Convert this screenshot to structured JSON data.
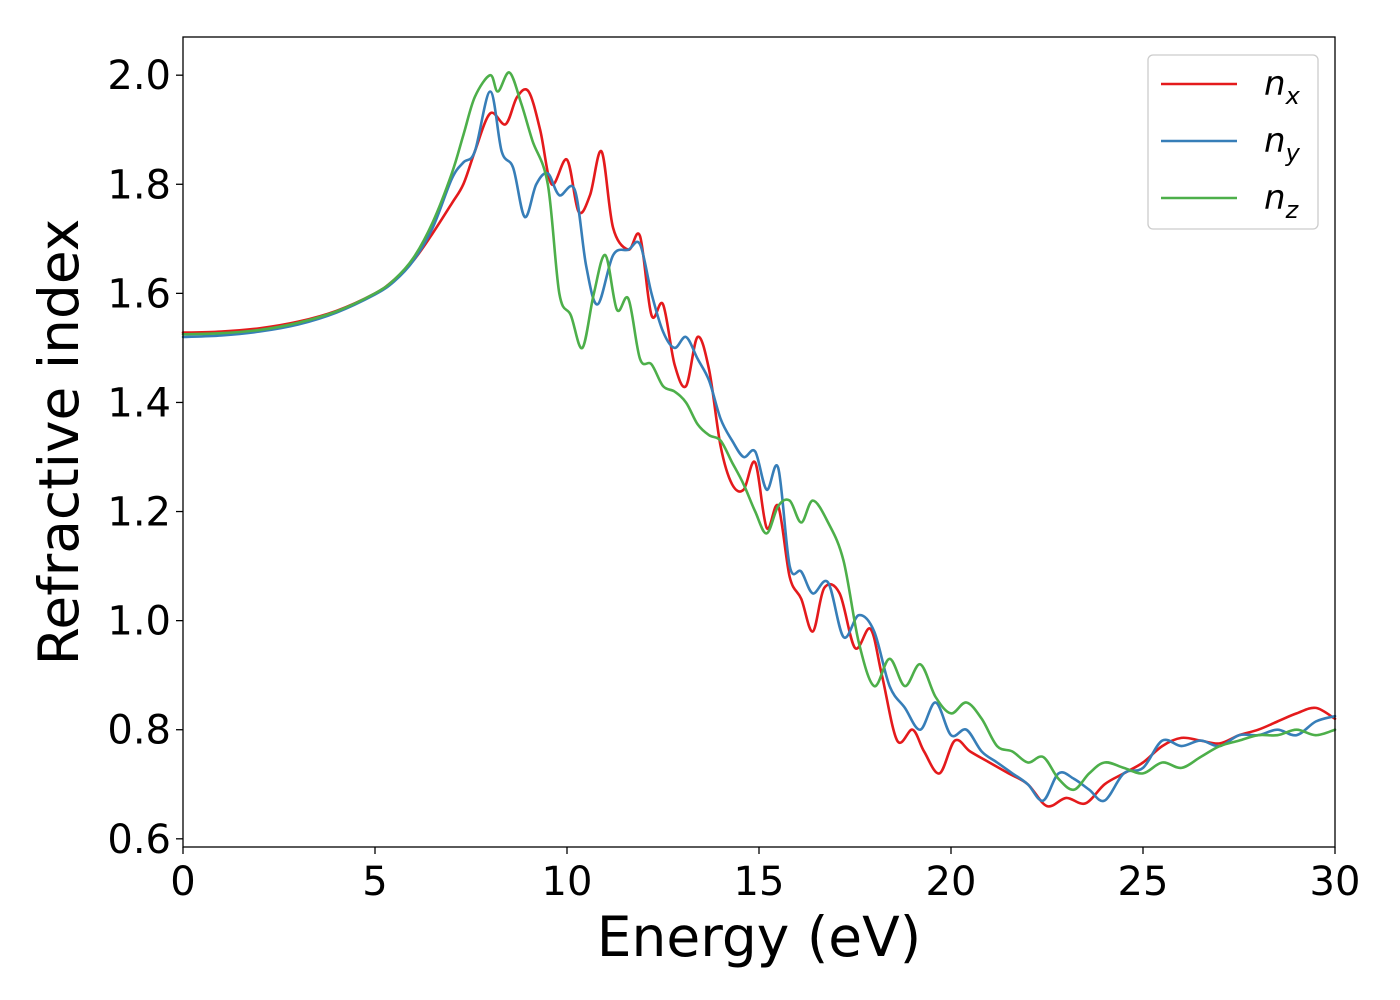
{
  "chart_data": {
    "type": "line",
    "title": "",
    "xlabel": "Energy (eV)",
    "ylabel": "Refractive index",
    "xlim": [
      0,
      30
    ],
    "ylim": [
      0.585,
      2.07
    ],
    "xticks": [
      0,
      5,
      10,
      15,
      20,
      25,
      30
    ],
    "xtick_labels": [
      "0",
      "5",
      "10",
      "15",
      "20",
      "25",
      "30"
    ],
    "yticks": [
      0.6,
      0.8,
      1.0,
      1.2,
      1.4,
      1.6,
      1.8,
      2.0
    ],
    "ytick_labels": [
      "0.6",
      "0.8",
      "1.0",
      "1.2",
      "1.4",
      "1.6",
      "1.8",
      "2.0"
    ],
    "grid": false,
    "legend_position": "top-right",
    "series": [
      {
        "name": "n_x",
        "label_base": "n",
        "label_sub": "x",
        "color": "#e41a1c",
        "points": [
          [
            0,
            1.528
          ],
          [
            1,
            1.53
          ],
          [
            2,
            1.536
          ],
          [
            3,
            1.548
          ],
          [
            4,
            1.568
          ],
          [
            5,
            1.6
          ],
          [
            5.5,
            1.625
          ],
          [
            6,
            1.66
          ],
          [
            6.5,
            1.71
          ],
          [
            7,
            1.765
          ],
          [
            7.3,
            1.8
          ],
          [
            7.6,
            1.86
          ],
          [
            8,
            1.93
          ],
          [
            8.4,
            1.91
          ],
          [
            8.7,
            1.96
          ],
          [
            9,
            1.97
          ],
          [
            9.3,
            1.9
          ],
          [
            9.6,
            1.8
          ],
          [
            10,
            1.845
          ],
          [
            10.3,
            1.75
          ],
          [
            10.6,
            1.78
          ],
          [
            10.9,
            1.86
          ],
          [
            11.2,
            1.72
          ],
          [
            11.6,
            1.68
          ],
          [
            11.9,
            1.705
          ],
          [
            12.2,
            1.56
          ],
          [
            12.5,
            1.58
          ],
          [
            12.8,
            1.47
          ],
          [
            13.1,
            1.43
          ],
          [
            13.4,
            1.52
          ],
          [
            13.7,
            1.46
          ],
          [
            14,
            1.32
          ],
          [
            14.3,
            1.25
          ],
          [
            14.6,
            1.24
          ],
          [
            14.9,
            1.29
          ],
          [
            15.2,
            1.17
          ],
          [
            15.5,
            1.21
          ],
          [
            15.8,
            1.08
          ],
          [
            16.1,
            1.04
          ],
          [
            16.4,
            0.98
          ],
          [
            16.7,
            1.06
          ],
          [
            17.1,
            1.05
          ],
          [
            17.5,
            0.95
          ],
          [
            17.9,
            0.985
          ],
          [
            18.2,
            0.9
          ],
          [
            18.6,
            0.78
          ],
          [
            19,
            0.8
          ],
          [
            19.3,
            0.76
          ],
          [
            19.7,
            0.72
          ],
          [
            20.1,
            0.78
          ],
          [
            20.5,
            0.76
          ],
          [
            21,
            0.74
          ],
          [
            21.5,
            0.72
          ],
          [
            22,
            0.7
          ],
          [
            22.5,
            0.66
          ],
          [
            23,
            0.675
          ],
          [
            23.5,
            0.665
          ],
          [
            24,
            0.7
          ],
          [
            24.5,
            0.72
          ],
          [
            25,
            0.74
          ],
          [
            25.5,
            0.77
          ],
          [
            26,
            0.785
          ],
          [
            26.5,
            0.78
          ],
          [
            27,
            0.775
          ],
          [
            27.5,
            0.79
          ],
          [
            28,
            0.8
          ],
          [
            28.5,
            0.815
          ],
          [
            29,
            0.83
          ],
          [
            29.5,
            0.84
          ],
          [
            30,
            0.82
          ]
        ]
      },
      {
        "name": "n_y",
        "label_base": "n",
        "label_sub": "y",
        "color": "#377eb8",
        "points": [
          [
            0,
            1.52
          ],
          [
            1,
            1.523
          ],
          [
            2,
            1.53
          ],
          [
            3,
            1.543
          ],
          [
            4,
            1.565
          ],
          [
            5,
            1.598
          ],
          [
            5.5,
            1.622
          ],
          [
            6,
            1.66
          ],
          [
            6.5,
            1.72
          ],
          [
            7,
            1.81
          ],
          [
            7.3,
            1.84
          ],
          [
            7.6,
            1.86
          ],
          [
            8,
            1.97
          ],
          [
            8.3,
            1.86
          ],
          [
            8.6,
            1.83
          ],
          [
            8.9,
            1.74
          ],
          [
            9.2,
            1.8
          ],
          [
            9.5,
            1.82
          ],
          [
            9.8,
            1.78
          ],
          [
            10.2,
            1.79
          ],
          [
            10.5,
            1.65
          ],
          [
            10.8,
            1.58
          ],
          [
            11.2,
            1.67
          ],
          [
            11.6,
            1.68
          ],
          [
            11.9,
            1.69
          ],
          [
            12.2,
            1.6
          ],
          [
            12.5,
            1.53
          ],
          [
            12.8,
            1.5
          ],
          [
            13.1,
            1.52
          ],
          [
            13.4,
            1.48
          ],
          [
            13.7,
            1.44
          ],
          [
            14,
            1.37
          ],
          [
            14.3,
            1.33
          ],
          [
            14.6,
            1.3
          ],
          [
            14.9,
            1.31
          ],
          [
            15.2,
            1.24
          ],
          [
            15.5,
            1.28
          ],
          [
            15.8,
            1.1
          ],
          [
            16.1,
            1.09
          ],
          [
            16.4,
            1.05
          ],
          [
            16.8,
            1.07
          ],
          [
            17.2,
            0.97
          ],
          [
            17.6,
            1.01
          ],
          [
            18,
            0.98
          ],
          [
            18.4,
            0.88
          ],
          [
            18.8,
            0.84
          ],
          [
            19.2,
            0.8
          ],
          [
            19.6,
            0.85
          ],
          [
            20,
            0.79
          ],
          [
            20.4,
            0.8
          ],
          [
            20.8,
            0.76
          ],
          [
            21.2,
            0.74
          ],
          [
            21.6,
            0.72
          ],
          [
            22,
            0.7
          ],
          [
            22.4,
            0.67
          ],
          [
            22.8,
            0.72
          ],
          [
            23.2,
            0.71
          ],
          [
            23.6,
            0.69
          ],
          [
            24,
            0.67
          ],
          [
            24.5,
            0.72
          ],
          [
            25,
            0.73
          ],
          [
            25.5,
            0.78
          ],
          [
            26,
            0.77
          ],
          [
            26.5,
            0.78
          ],
          [
            27,
            0.77
          ],
          [
            27.5,
            0.79
          ],
          [
            28,
            0.79
          ],
          [
            28.5,
            0.8
          ],
          [
            29,
            0.79
          ],
          [
            29.5,
            0.815
          ],
          [
            30,
            0.825
          ]
        ]
      },
      {
        "name": "n_z",
        "label_base": "n",
        "label_sub": "z",
        "color": "#4daf4a",
        "points": [
          [
            0,
            1.525
          ],
          [
            1,
            1.527
          ],
          [
            2,
            1.533
          ],
          [
            3,
            1.546
          ],
          [
            4,
            1.567
          ],
          [
            5,
            1.6
          ],
          [
            5.5,
            1.625
          ],
          [
            6,
            1.665
          ],
          [
            6.5,
            1.73
          ],
          [
            7,
            1.82
          ],
          [
            7.3,
            1.89
          ],
          [
            7.6,
            1.96
          ],
          [
            8,
            2.0
          ],
          [
            8.2,
            1.97
          ],
          [
            8.5,
            2.005
          ],
          [
            8.8,
            1.95
          ],
          [
            9.1,
            1.88
          ],
          [
            9.5,
            1.8
          ],
          [
            9.8,
            1.6
          ],
          [
            10.1,
            1.56
          ],
          [
            10.4,
            1.5
          ],
          [
            10.7,
            1.6
          ],
          [
            11,
            1.67
          ],
          [
            11.3,
            1.57
          ],
          [
            11.6,
            1.59
          ],
          [
            11.9,
            1.48
          ],
          [
            12.2,
            1.47
          ],
          [
            12.5,
            1.43
          ],
          [
            12.8,
            1.42
          ],
          [
            13.1,
            1.4
          ],
          [
            13.4,
            1.36
          ],
          [
            13.7,
            1.34
          ],
          [
            14,
            1.33
          ],
          [
            14.3,
            1.29
          ],
          [
            14.6,
            1.25
          ],
          [
            14.9,
            1.2
          ],
          [
            15.2,
            1.16
          ],
          [
            15.5,
            1.21
          ],
          [
            15.8,
            1.22
          ],
          [
            16.1,
            1.18
          ],
          [
            16.4,
            1.22
          ],
          [
            16.8,
            1.18
          ],
          [
            17.2,
            1.11
          ],
          [
            17.6,
            0.96
          ],
          [
            18,
            0.88
          ],
          [
            18.4,
            0.93
          ],
          [
            18.8,
            0.88
          ],
          [
            19.2,
            0.92
          ],
          [
            19.6,
            0.86
          ],
          [
            20,
            0.83
          ],
          [
            20.4,
            0.85
          ],
          [
            20.8,
            0.82
          ],
          [
            21.2,
            0.77
          ],
          [
            21.6,
            0.76
          ],
          [
            22,
            0.74
          ],
          [
            22.4,
            0.75
          ],
          [
            22.8,
            0.71
          ],
          [
            23.2,
            0.69
          ],
          [
            23.6,
            0.72
          ],
          [
            24,
            0.74
          ],
          [
            24.5,
            0.73
          ],
          [
            25,
            0.72
          ],
          [
            25.5,
            0.74
          ],
          [
            26,
            0.73
          ],
          [
            26.5,
            0.75
          ],
          [
            27,
            0.77
          ],
          [
            27.5,
            0.78
          ],
          [
            28,
            0.79
          ],
          [
            28.5,
            0.79
          ],
          [
            29,
            0.8
          ],
          [
            29.5,
            0.79
          ],
          [
            30,
            0.8
          ]
        ]
      }
    ]
  }
}
